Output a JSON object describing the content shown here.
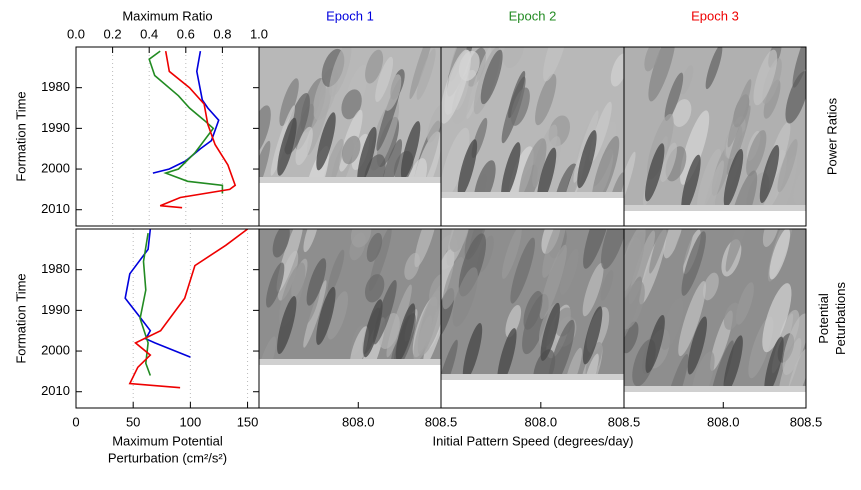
{
  "chart_data": [
    {
      "type": "line",
      "xlabel": "Maximum Ratio",
      "ylabel": "Formation Time",
      "xlim": [
        0,
        1
      ],
      "xticks": [
        {
          "value": 0,
          "label": "0.0"
        },
        0.2,
        0.4,
        0.6,
        0.8,
        {
          "value": 1,
          "label": "1.0"
        }
      ],
      "ylim": [
        1970,
        2014
      ],
      "yticks": [
        1980,
        1990,
        2000,
        2010
      ],
      "yreversed": true,
      "grid": true,
      "series": [
        {
          "name": "Epoch 1",
          "color": "#0000dd",
          "y": [
            1971,
            1976,
            1983,
            1985,
            1988,
            1993,
            1995,
            1998,
            2000,
            2001
          ],
          "values": [
            0.68,
            0.66,
            0.69,
            0.72,
            0.78,
            0.74,
            0.68,
            0.6,
            0.51,
            0.42
          ]
        },
        {
          "name": "Epoch 2",
          "color": "#228b22",
          "y": [
            1971,
            1973,
            1977,
            1982,
            1985,
            1988,
            1990,
            1993,
            1996,
            2000,
            2001,
            2003,
            2004,
            2006
          ],
          "values": [
            0.46,
            0.4,
            0.43,
            0.56,
            0.62,
            0.7,
            0.75,
            0.7,
            0.65,
            0.56,
            0.49,
            0.61,
            0.8,
            0.8
          ]
        },
        {
          "name": "Epoch 3",
          "color": "#ee0000",
          "y": [
            1971,
            1976,
            1980,
            1984,
            1989,
            1994,
            1999,
            2004,
            2005,
            2007,
            2009,
            2009.5
          ],
          "values": [
            0.49,
            0.51,
            0.62,
            0.7,
            0.72,
            0.76,
            0.83,
            0.87,
            0.84,
            0.57,
            0.46,
            0.58
          ]
        }
      ]
    },
    {
      "type": "heatmap",
      "title": "Epoch 1",
      "title_color": "#0000dd"
    },
    {
      "type": "heatmap",
      "title": "Epoch 2",
      "title_color": "#228b22"
    },
    {
      "type": "heatmap",
      "title": "Epoch 3",
      "title_color": "#ee0000",
      "row_label": [
        "Power Ratios"
      ]
    },
    {
      "type": "line",
      "xlabel": [
        "Maximum Potential",
        "Perturbation (cm²/s²)"
      ],
      "ylabel": "Formation Time",
      "xlim": [
        0,
        160
      ],
      "xticks": [
        0,
        50,
        100,
        150
      ],
      "ylim": [
        1970,
        2014
      ],
      "yticks": [
        1980,
        1990,
        2000,
        2010
      ],
      "yreversed": true,
      "grid": true,
      "series": [
        {
          "name": "Epoch 1",
          "color": "#0000dd",
          "y": [
            1970,
            1975,
            1981,
            1987,
            1991,
            1995,
            1997,
            1998,
            2001.5
          ],
          "values": [
            65,
            63,
            47,
            43,
            54,
            65,
            61,
            69,
            100
          ]
        },
        {
          "name": "Epoch 2",
          "color": "#228b22",
          "y": [
            1971,
            1978,
            1985,
            1992,
            1998,
            2003,
            2006
          ],
          "values": [
            63,
            59,
            61,
            56,
            63,
            61,
            65
          ]
        },
        {
          "name": "Epoch 3",
          "color": "#ee0000",
          "y": [
            1970,
            1974,
            1979,
            1987,
            1995,
            1998,
            2001,
            2004,
            2008,
            2009
          ],
          "values": [
            150,
            131,
            104,
            95,
            74,
            52,
            65,
            54,
            47,
            91
          ]
        }
      ]
    },
    {
      "type": "heatmap",
      "xlim": [
        807.4,
        808.5
      ],
      "xticks": [
        {
          "value": 808,
          "label": "808.0"
        },
        808.5
      ]
    },
    {
      "type": "heatmap",
      "xlim": [
        807.4,
        808.5
      ],
      "xticks": [
        {
          "value": 808,
          "label": "808.0"
        },
        808.5
      ]
    },
    {
      "type": "heatmap",
      "xlim": [
        807.4,
        808.5
      ],
      "xticks": [
        {
          "value": 808,
          "label": "808.0"
        },
        808.5
      ],
      "row_label": [
        "Potential",
        "Peturbations"
      ]
    }
  ],
  "figure": {
    "xlabel": "Initial Pattern Speed (degrees/day)"
  }
}
